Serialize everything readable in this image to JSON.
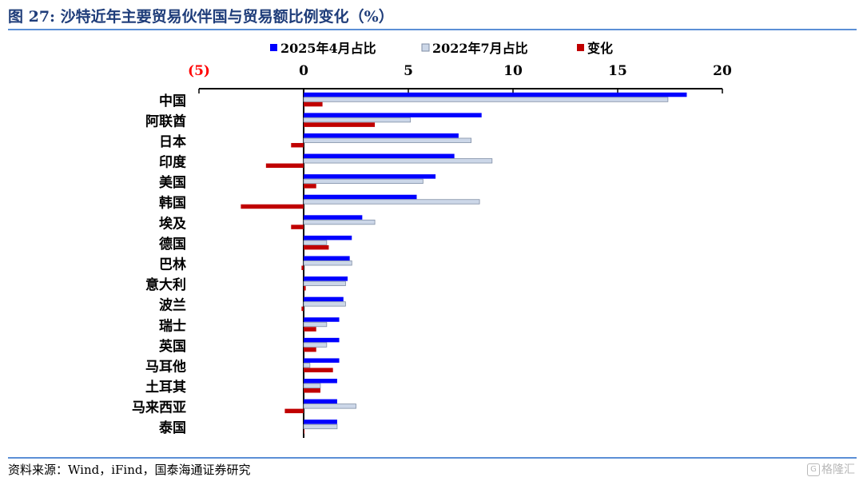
{
  "header": {
    "title": "图 27:  沙特近年主要贸易伙伴国与贸易额比例变化（%）"
  },
  "footer": {
    "source": "资料来源：Wind，iFind，国泰海通证券研究",
    "watermark": "格隆汇",
    "watermark_icon": "g-logo-icon"
  },
  "chart_data": {
    "type": "bar",
    "orientation": "horizontal",
    "title": "沙特近年主要贸易伙伴国与贸易额比例变化（%）",
    "categories": [
      "中国",
      "阿联酋",
      "日本",
      "印度",
      "美国",
      "韩国",
      "埃及",
      "德国",
      "巴林",
      "意大利",
      "波兰",
      "瑞士",
      "英国",
      "马耳他",
      "土耳其",
      "马来西亚",
      "泰国"
    ],
    "series": [
      {
        "name": "2025年4月占比",
        "color": "#0000ff",
        "values": [
          18.3,
          8.5,
          7.4,
          7.2,
          6.3,
          5.4,
          2.8,
          2.3,
          2.2,
          2.1,
          1.9,
          1.7,
          1.7,
          1.7,
          1.6,
          1.6,
          1.6
        ]
      },
      {
        "name": "2022年7月占比",
        "color": "#ccd7e8",
        "stroke": "#7f8ea5",
        "values": [
          17.4,
          5.1,
          8.0,
          9.0,
          5.7,
          8.4,
          3.4,
          1.1,
          2.3,
          2.0,
          2.0,
          1.1,
          1.1,
          0.3,
          0.8,
          2.5,
          1.6
        ]
      },
      {
        "name": "变化",
        "color": "#c00000",
        "values": [
          0.9,
          3.4,
          -0.6,
          -1.8,
          0.6,
          -3.0,
          -0.6,
          1.2,
          -0.1,
          0.1,
          -0.1,
          0.6,
          0.6,
          1.4,
          0.8,
          -0.9,
          0.0
        ]
      }
    ],
    "x_ticks": [
      -5,
      0,
      5,
      10,
      15,
      20
    ],
    "x_tick_labels": [
      "(5)",
      "0",
      "5",
      "10",
      "15",
      "20"
    ],
    "xlim": [
      -5,
      20
    ],
    "negative_tick_color": "#ff0000",
    "legend_position": "top",
    "axis_position": "top",
    "grid": false
  }
}
